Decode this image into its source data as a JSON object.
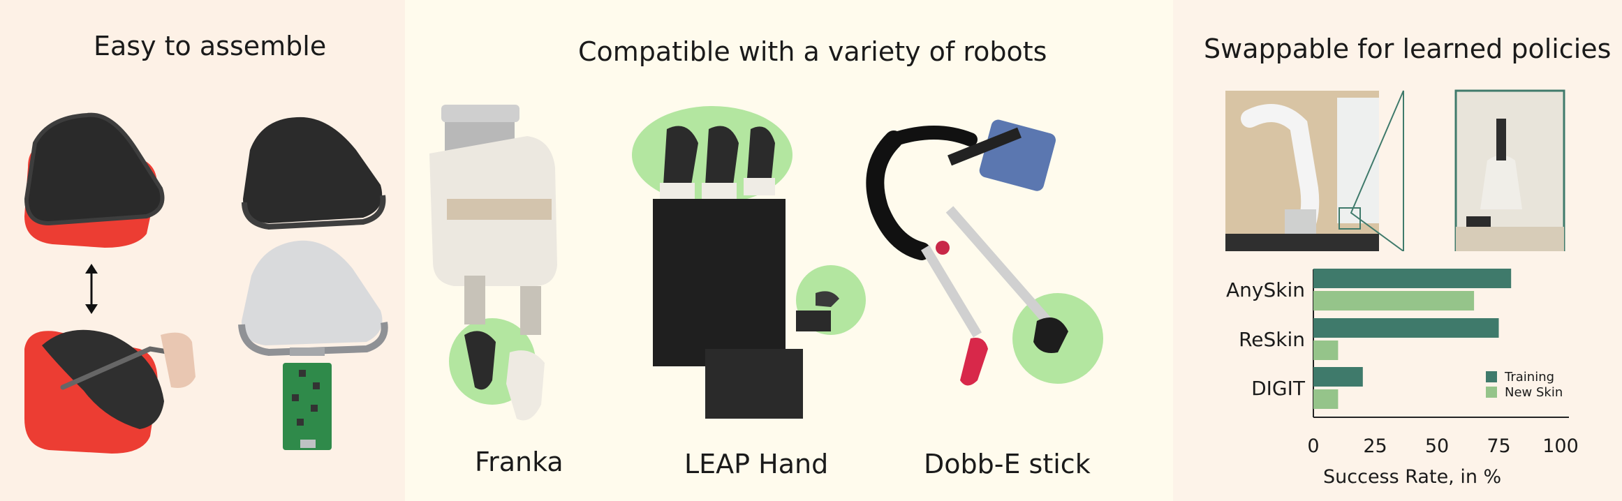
{
  "panels": {
    "left": {
      "title": "Easy to assemble"
    },
    "middle": {
      "title": "Compatible with a variety of robots",
      "robots": [
        {
          "label": "Franka"
        },
        {
          "label": "LEAP Hand"
        },
        {
          "label": "Dobb-E stick"
        }
      ]
    },
    "right": {
      "title": "Swappable for learned policies"
    }
  },
  "colors": {
    "training": "#3f7a6b",
    "new_skin": "#95c48a",
    "highlight": "#b3e6a0"
  },
  "chart_data": {
    "type": "bar",
    "orientation": "horizontal",
    "categories": [
      "AnySkin",
      "ReSkin",
      "DIGIT"
    ],
    "series": [
      {
        "name": "Training",
        "values": [
          80,
          75,
          20
        ]
      },
      {
        "name": "New Skin",
        "values": [
          65,
          10,
          10
        ]
      }
    ],
    "xlabel": "Success Rate, in %",
    "xlim": [
      0,
      100
    ],
    "xticks": [
      "0",
      "25",
      "50",
      "75",
      "100"
    ],
    "legend_position": "bottom-right",
    "grid": false
  }
}
